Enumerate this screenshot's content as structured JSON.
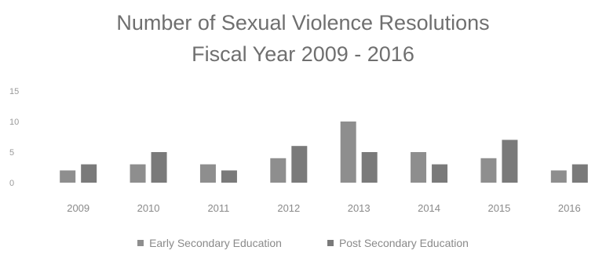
{
  "chart_data": {
    "type": "bar",
    "title_line1": "Number of Sexual Violence Resolutions",
    "title_line2": "Fiscal Year 2009 - 2016",
    "categories": [
      "2009",
      "2010",
      "2011",
      "2012",
      "2013",
      "2014",
      "2015",
      "2016"
    ],
    "series": [
      {
        "name": "Early Secondary Education",
        "values": [
          2,
          3,
          3,
          4,
          10,
          5,
          4,
          2
        ],
        "color": "#8e8e8e"
      },
      {
        "name": "Post Secondary Education",
        "values": [
          3,
          5,
          2,
          6,
          5,
          3,
          7,
          3
        ],
        "color": "#7a7a7a"
      }
    ],
    "y_ticks": [
      "0",
      "5",
      "10",
      "15"
    ],
    "ylim": [
      0,
      15
    ],
    "grid": false,
    "legend_position": "bottom"
  }
}
